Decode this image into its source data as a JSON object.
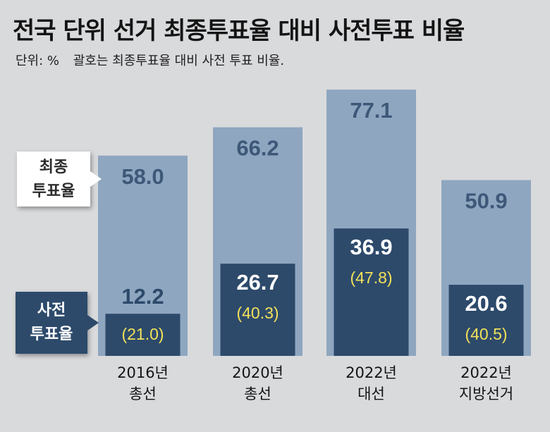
{
  "title": "전국 단위 선거 최종투표율 대비 사전투표 비율",
  "subtitle": {
    "unit": "단위: %",
    "note": "괄호는 최종투표율 대비 사전 투표 비율."
  },
  "legend": {
    "final_line1": "최종",
    "final_line2": "투표율",
    "early_line1": "사전",
    "early_line2": "투표율"
  },
  "colors": {
    "final_bar": "#8fa6c0",
    "early_bar": "#2d4a6b",
    "final_label": "#3d5878",
    "ratio_label": "#f2e15a",
    "background": "#d9dadc"
  },
  "chart_data": {
    "type": "bar",
    "categories": [
      {
        "year": "2016년",
        "name": "총선"
      },
      {
        "year": "2020년",
        "name": "총선"
      },
      {
        "year": "2022년",
        "name": "대선"
      },
      {
        "year": "2022년",
        "name": "지방선거"
      }
    ],
    "series": [
      {
        "name": "최종 투표율",
        "values": [
          58.0,
          66.2,
          77.1,
          50.9
        ]
      },
      {
        "name": "사전 투표율",
        "values": [
          12.2,
          26.7,
          36.9,
          20.6
        ]
      }
    ],
    "ratio_labels": [
      "(21.0)",
      "(40.3)",
      "(47.8)",
      "(40.5)"
    ],
    "final_labels": [
      "58.0",
      "66.2",
      "77.1",
      "50.9"
    ],
    "early_labels": [
      "12.2",
      "26.7",
      "36.9",
      "20.6"
    ],
    "ylim": [
      0,
      80
    ]
  }
}
